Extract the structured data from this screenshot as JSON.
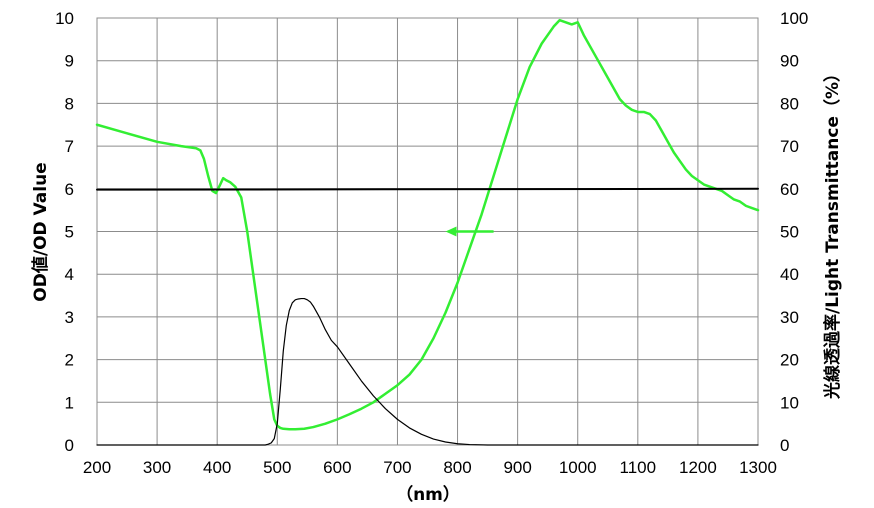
{
  "chart_data": {
    "type": "line",
    "xlabel": "（nm）",
    "ylabel_left": "OD値/OD Value",
    "ylabel_right": "光線透過率/Light Transmittance（%）",
    "xlim": [
      200,
      1300
    ],
    "ylim_left": [
      0,
      10
    ],
    "ylim_right": [
      0,
      100
    ],
    "x_ticks": [
      "200",
      "300",
      "400",
      "500",
      "600",
      "700",
      "800",
      "900",
      "1000",
      "1100",
      "1200",
      "1300"
    ],
    "y_left_ticks": [
      "0",
      "1",
      "2",
      "3",
      "4",
      "5",
      "6",
      "7",
      "8",
      "9",
      "10"
    ],
    "y_right_ticks": [
      "0",
      "10",
      "20",
      "30",
      "40",
      "50",
      "60",
      "70",
      "80",
      "90",
      "100"
    ],
    "grid": true,
    "annotations": [
      {
        "type": "arrow",
        "direction": "left",
        "color": "#33ee33",
        "from": [
          860,
          5.0
        ],
        "to": [
          780,
          5.0
        ]
      }
    ],
    "series": [
      {
        "color": "#33ee33",
        "axis": "left",
        "width": 2.5,
        "x": [
          200,
          250,
          300,
          340,
          365,
          372,
          378,
          385,
          392,
          398,
          405,
          410,
          415,
          422,
          430,
          440,
          450,
          460,
          470,
          480,
          488,
          495,
          500,
          505,
          510,
          520,
          530,
          545,
          560,
          580,
          600,
          620,
          640,
          660,
          680,
          700,
          720,
          740,
          760,
          780,
          800,
          820,
          840,
          860,
          880,
          900,
          920,
          940,
          960,
          970,
          980,
          990,
          1000,
          1010,
          1030,
          1050,
          1070,
          1080,
          1090,
          1100,
          1110,
          1120,
          1130,
          1140,
          1150,
          1160,
          1170,
          1180,
          1190,
          1200,
          1210,
          1220,
          1230,
          1240,
          1250,
          1260,
          1270,
          1280,
          1290,
          1300
        ],
        "y": [
          7.5,
          7.3,
          7.1,
          7.0,
          6.95,
          6.9,
          6.7,
          6.3,
          5.95,
          5.9,
          6.1,
          6.25,
          6.2,
          6.15,
          6.05,
          5.8,
          5.0,
          4.0,
          3.0,
          2.0,
          1.2,
          0.6,
          0.45,
          0.4,
          0.38,
          0.37,
          0.37,
          0.38,
          0.42,
          0.5,
          0.6,
          0.72,
          0.85,
          1.0,
          1.2,
          1.4,
          1.65,
          2.0,
          2.5,
          3.1,
          3.8,
          4.6,
          5.4,
          6.3,
          7.2,
          8.1,
          8.85,
          9.4,
          9.8,
          9.95,
          9.9,
          9.85,
          9.9,
          9.6,
          9.1,
          8.6,
          8.1,
          7.95,
          7.85,
          7.8,
          7.8,
          7.75,
          7.6,
          7.35,
          7.1,
          6.85,
          6.65,
          6.45,
          6.3,
          6.2,
          6.1,
          6.05,
          6.0,
          5.95,
          5.85,
          5.75,
          5.7,
          5.6,
          5.55,
          5.5
        ]
      },
      {
        "color": "#000000",
        "axis": "left",
        "width": 1.2,
        "x": [
          200,
          470,
          480,
          485,
          490,
          495,
          500,
          505,
          510,
          515,
          520,
          525,
          530,
          535,
          540,
          545,
          550,
          555,
          560,
          570,
          580,
          590,
          600,
          620,
          640,
          660,
          680,
          700,
          720,
          740,
          760,
          780,
          800,
          820,
          850,
          900,
          1300
        ],
        "y": [
          0,
          0,
          0.0,
          0.02,
          0.05,
          0.15,
          0.5,
          1.3,
          2.2,
          2.8,
          3.15,
          3.33,
          3.4,
          3.42,
          3.43,
          3.43,
          3.4,
          3.35,
          3.25,
          3.0,
          2.7,
          2.45,
          2.3,
          1.9,
          1.5,
          1.15,
          0.85,
          0.6,
          0.4,
          0.25,
          0.14,
          0.07,
          0.03,
          0.01,
          0,
          0,
          0
        ]
      },
      {
        "color": "#000000",
        "axis": "left",
        "width": 2,
        "x": [
          200,
          1300
        ],
        "y": [
          5.98,
          6.0
        ]
      }
    ]
  }
}
